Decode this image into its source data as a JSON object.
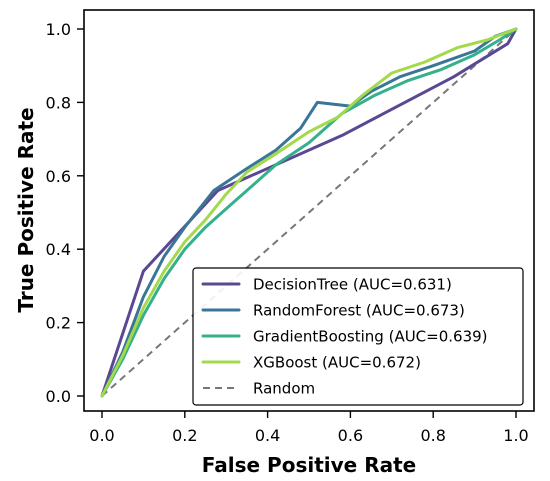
{
  "chart_data": {
    "type": "line",
    "title": "",
    "xlabel": "False Positive Rate",
    "ylabel": "True Positive Rate",
    "xlim": [
      0.0,
      1.0
    ],
    "ylim": [
      0.0,
      1.0
    ],
    "xticks": [
      "0.0",
      "0.2",
      "0.4",
      "0.6",
      "0.8",
      "1.0"
    ],
    "yticks": [
      "0.0",
      "0.2",
      "0.4",
      "0.6",
      "0.8",
      "1.0"
    ],
    "grid": false,
    "legend_position": "bottom-right",
    "series": [
      {
        "name": "DecisionTree (AUC=0.631)",
        "color": "#5b4893",
        "style": "solid",
        "x": [
          0.0,
          0.05,
          0.1,
          0.28,
          0.58,
          0.85,
          0.98,
          1.0
        ],
        "y": [
          0.0,
          0.17,
          0.34,
          0.56,
          0.71,
          0.87,
          0.96,
          1.0
        ]
      },
      {
        "name": "RandomForest (AUC=0.673)",
        "color": "#3a7698",
        "style": "solid",
        "x": [
          0.0,
          0.05,
          0.1,
          0.15,
          0.2,
          0.27,
          0.35,
          0.42,
          0.48,
          0.52,
          0.6,
          0.65,
          0.72,
          0.8,
          0.9,
          0.95,
          1.0
        ],
        "y": [
          0.0,
          0.12,
          0.27,
          0.38,
          0.46,
          0.56,
          0.62,
          0.67,
          0.73,
          0.8,
          0.79,
          0.83,
          0.87,
          0.9,
          0.94,
          0.98,
          1.0
        ]
      },
      {
        "name": "GradientBoosting (AUC=0.639)",
        "color": "#34b08c",
        "style": "solid",
        "x": [
          0.0,
          0.05,
          0.1,
          0.15,
          0.2,
          0.25,
          0.3,
          0.35,
          0.42,
          0.5,
          0.58,
          0.66,
          0.74,
          0.82,
          0.9,
          0.96,
          1.0
        ],
        "y": [
          0.0,
          0.1,
          0.22,
          0.32,
          0.4,
          0.46,
          0.51,
          0.56,
          0.63,
          0.69,
          0.77,
          0.82,
          0.86,
          0.89,
          0.93,
          0.97,
          1.0
        ]
      },
      {
        "name": "XGBoost (AUC=0.672)",
        "color": "#a3d94a",
        "style": "solid",
        "x": [
          0.0,
          0.05,
          0.1,
          0.15,
          0.2,
          0.25,
          0.3,
          0.35,
          0.42,
          0.5,
          0.57,
          0.63,
          0.7,
          0.78,
          0.86,
          0.93,
          1.0
        ],
        "y": [
          0.0,
          0.11,
          0.24,
          0.34,
          0.42,
          0.48,
          0.55,
          0.61,
          0.66,
          0.72,
          0.76,
          0.82,
          0.88,
          0.91,
          0.95,
          0.97,
          1.0
        ]
      },
      {
        "name": "Random",
        "color": "#777777",
        "style": "dashed",
        "x": [
          0.0,
          1.0
        ],
        "y": [
          0.0,
          1.0
        ]
      }
    ]
  }
}
